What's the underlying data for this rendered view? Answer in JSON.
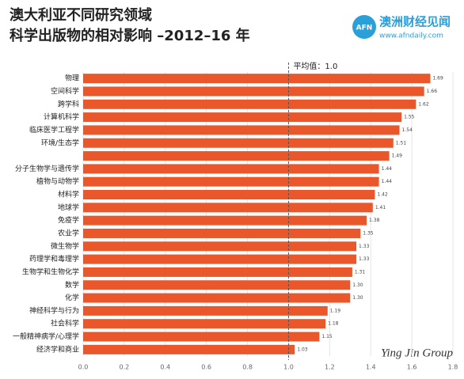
{
  "logo": {
    "mark": "AFN",
    "name": "澳洲财经见闻",
    "url": "www.afndaily.com"
  },
  "watermark": "Ying Jin Group",
  "chart_data": {
    "type": "barh",
    "title": [
      "澳大利亚不同研究领域",
      "科学出版物的相对影响 –2012–16 年"
    ],
    "categories": [
      "物理",
      "空间科学",
      "跨学科",
      "计算机科学",
      "临床医学工程学",
      "环境/生态学",
      null,
      "分子生物学与遗传学",
      "植物与动物学",
      "材料学",
      "地球学",
      "免疫学",
      "农业学",
      "微生物学",
      "药理学和毒理学",
      "生物学和生物化学",
      "数学",
      "化学",
      "神经科学与行为",
      "社会科学",
      "一般精神病学/心理学",
      "经济学和商业"
    ],
    "values": [
      1.69,
      1.66,
      1.62,
      1.55,
      1.54,
      1.51,
      1.49,
      1.44,
      1.44,
      1.42,
      1.41,
      1.38,
      1.35,
      1.33,
      1.33,
      1.31,
      1.3,
      1.3,
      1.19,
      1.18,
      1.15,
      1.03
    ],
    "value_labels": [
      "1.69",
      "1.66",
      "1.62",
      "1.55",
      "1.54",
      "1.51",
      "1.49",
      "1.44",
      "1.44",
      "1.42",
      "1.41",
      "1.38",
      "1.35",
      "1.33",
      "1.33",
      "1.31",
      "1.30",
      "1.30",
      "1.19",
      "1.18",
      "1.15",
      "1.03"
    ],
    "color": "#e9572b",
    "xlim": [
      0,
      1.8
    ],
    "xticks": [
      {
        "value": 0,
        "label": "0.0"
      },
      {
        "value": 0.2,
        "label": "0.2"
      },
      {
        "value": 0.4,
        "label": "0.4"
      },
      {
        "value": 0.6,
        "label": "0.6"
      },
      {
        "value": 0.8,
        "label": "0.8"
      },
      {
        "value": 1.0,
        "label": "1.0"
      },
      {
        "value": 1.2,
        "label": "1.2"
      },
      {
        "value": 1.4,
        "label": "1.4"
      },
      {
        "value": 1.6,
        "label": "1.6"
      },
      {
        "value": 1.8,
        "label": "1.8"
      }
    ],
    "grid": true,
    "reference_line": {
      "value": 1.0,
      "label": "平均值：1.0"
    }
  }
}
